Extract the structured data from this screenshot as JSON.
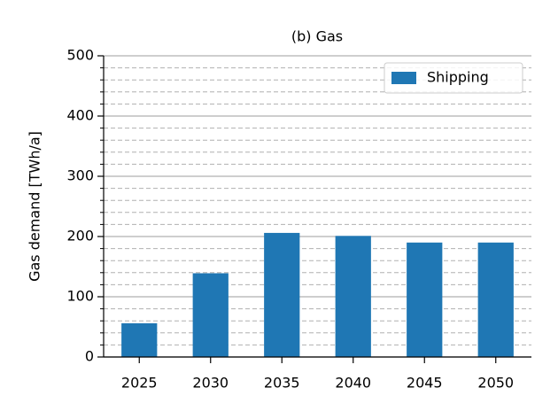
{
  "chart_data": {
    "type": "bar",
    "title": "(b) Gas",
    "y_label": "Gas demand [TWh/a]",
    "categories": [
      "2025",
      "2030",
      "2035",
      "2040",
      "2045",
      "2050"
    ],
    "series": [
      {
        "name": "Shipping",
        "color": "#1f77b4",
        "values": [
          56,
          139,
          206,
          201,
          190,
          190
        ]
      }
    ],
    "ylim": [
      0,
      500
    ],
    "yticks": [
      0,
      100,
      200,
      300,
      400,
      500
    ],
    "minor_yticks": [
      20,
      40,
      60,
      80,
      120,
      140,
      160,
      180,
      220,
      240,
      260,
      280,
      320,
      340,
      360,
      380,
      420,
      440,
      460,
      480
    ],
    "grid": true,
    "legend": "upper right"
  }
}
